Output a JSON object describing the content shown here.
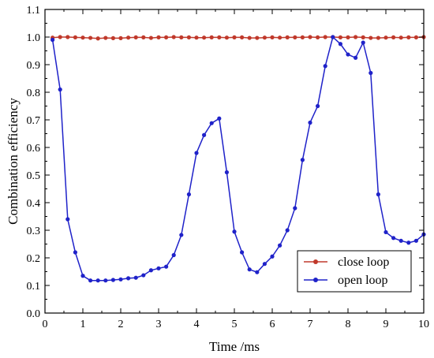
{
  "chart_data": {
    "type": "line",
    "title": "",
    "xlabel": "Time /ms",
    "ylabel": "Combination efficiency",
    "xlim": [
      0,
      10
    ],
    "ylim": [
      0.0,
      1.1
    ],
    "xticks": [
      0,
      1,
      2,
      3,
      4,
      5,
      6,
      7,
      8,
      9,
      10
    ],
    "yticks": [
      0.0,
      0.1,
      0.2,
      0.3,
      0.4,
      0.5,
      0.6,
      0.7,
      0.8,
      0.9,
      1.0,
      1.1
    ],
    "xtick_labels": [
      "0",
      "1",
      "2",
      "3",
      "4",
      "5",
      "6",
      "7",
      "8",
      "9",
      "10"
    ],
    "ytick_labels": [
      "0.0",
      "0.1",
      "0.2",
      "0.3",
      "0.4",
      "0.5",
      "0.6",
      "0.7",
      "0.8",
      "0.9",
      "1.0",
      "1.1"
    ],
    "grid": false,
    "legend_position": "bottom-right",
    "series": [
      {
        "name": "close loop",
        "color": "#c0392b",
        "marker": "circle",
        "x": [
          0.2,
          0.4,
          0.6,
          0.8,
          1.0,
          1.2,
          1.4,
          1.6,
          1.8,
          2.0,
          2.2,
          2.4,
          2.6,
          2.8,
          3.0,
          3.2,
          3.4,
          3.6,
          3.8,
          4.0,
          4.2,
          4.4,
          4.6,
          4.8,
          5.0,
          5.2,
          5.4,
          5.6,
          5.8,
          6.0,
          6.2,
          6.4,
          6.6,
          6.8,
          7.0,
          7.2,
          7.4,
          7.6,
          7.8,
          8.0,
          8.2,
          8.4,
          8.6,
          8.8,
          9.0,
          9.2,
          9.4,
          9.6,
          9.8,
          10.0
        ],
        "y": [
          0.998,
          1.0,
          1.0,
          0.999,
          0.998,
          0.997,
          0.995,
          0.997,
          0.996,
          0.996,
          0.998,
          0.999,
          0.999,
          0.997,
          0.999,
          0.999,
          1.0,
          0.999,
          0.999,
          0.998,
          0.998,
          0.999,
          0.999,
          0.998,
          0.999,
          0.999,
          0.997,
          0.997,
          0.998,
          0.999,
          0.998,
          0.999,
          0.999,
          0.999,
          1.0,
          0.999,
          1.0,
          1.0,
          0.999,
          0.999,
          1.0,
          0.999,
          0.997,
          0.997,
          0.998,
          0.999,
          0.998,
          0.999,
          0.999,
          1.0
        ]
      },
      {
        "name": "open loop",
        "color": "#1f22c9",
        "marker": "circle",
        "x": [
          0.2,
          0.4,
          0.6,
          0.8,
          1.0,
          1.2,
          1.4,
          1.6,
          1.8,
          2.0,
          2.2,
          2.4,
          2.6,
          2.8,
          3.0,
          3.2,
          3.4,
          3.6,
          3.8,
          4.0,
          4.2,
          4.4,
          4.6,
          4.8,
          5.0,
          5.2,
          5.4,
          5.6,
          5.8,
          6.0,
          6.2,
          6.4,
          6.6,
          6.8,
          7.0,
          7.2,
          7.4,
          7.6,
          7.8,
          8.0,
          8.2,
          8.4,
          8.6,
          8.8,
          9.0,
          9.2,
          9.4,
          9.6,
          9.8,
          10.0
        ],
        "y": [
          0.99,
          0.81,
          0.34,
          0.22,
          0.135,
          0.118,
          0.118,
          0.118,
          0.12,
          0.122,
          0.126,
          0.128,
          0.137,
          0.155,
          0.162,
          0.168,
          0.21,
          0.283,
          0.43,
          0.58,
          0.645,
          0.688,
          0.705,
          0.51,
          0.295,
          0.22,
          0.158,
          0.148,
          0.178,
          0.205,
          0.245,
          0.3,
          0.38,
          0.555,
          0.69,
          0.75,
          0.895,
          1.0,
          0.975,
          0.937,
          0.925,
          0.98,
          0.87,
          0.43,
          0.293,
          0.272,
          0.262,
          0.255,
          0.262,
          0.285
        ]
      }
    ]
  }
}
